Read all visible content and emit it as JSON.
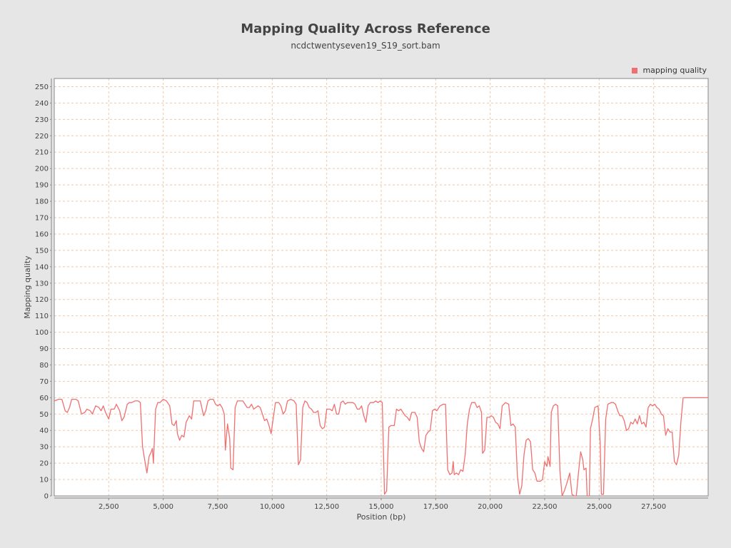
{
  "chart_data": {
    "type": "line",
    "title": "Mapping Quality Across Reference",
    "subtitle": "ncdctwentyseven19_S19_sort.bam",
    "xlabel": "Position (bp)",
    "ylabel": "Mapping quality",
    "xlim": [
      0,
      30000
    ],
    "ylim": [
      0,
      255
    ],
    "x_ticks": [
      2500,
      5000,
      7500,
      10000,
      12500,
      15000,
      17500,
      20000,
      22500,
      25000,
      27500
    ],
    "x_tick_labels": [
      "2,500",
      "5,000",
      "7,500",
      "10,000",
      "12,500",
      "15,000",
      "17,500",
      "20,000",
      "22,500",
      "25,000",
      "27,500"
    ],
    "y_ticks": [
      0,
      10,
      20,
      30,
      40,
      50,
      60,
      70,
      80,
      90,
      100,
      110,
      120,
      130,
      140,
      150,
      160,
      170,
      180,
      190,
      200,
      210,
      220,
      230,
      240,
      250
    ],
    "grid": true,
    "legend_position": "top-right",
    "colors": {
      "line": "#f07070",
      "grid": "#f0c8a8",
      "plot_background": "#ffffff",
      "page_background": "#e6e6e6"
    },
    "series": [
      {
        "name": "mapping quality",
        "points": [
          [
            0,
            58
          ],
          [
            200,
            59
          ],
          [
            350,
            59
          ],
          [
            500,
            52
          ],
          [
            600,
            51
          ],
          [
            700,
            54
          ],
          [
            800,
            59
          ],
          [
            1000,
            59
          ],
          [
            1100,
            58
          ],
          [
            1250,
            50
          ],
          [
            1400,
            51
          ],
          [
            1500,
            53
          ],
          [
            1650,
            52
          ],
          [
            1750,
            50
          ],
          [
            1900,
            55
          ],
          [
            2050,
            54
          ],
          [
            2150,
            52
          ],
          [
            2250,
            55
          ],
          [
            2350,
            51
          ],
          [
            2500,
            47
          ],
          [
            2600,
            53
          ],
          [
            2750,
            53
          ],
          [
            2850,
            56
          ],
          [
            3000,
            52
          ],
          [
            3100,
            46
          ],
          [
            3200,
            48
          ],
          [
            3350,
            56
          ],
          [
            3450,
            57
          ],
          [
            3550,
            57
          ],
          [
            3700,
            58
          ],
          [
            3850,
            58
          ],
          [
            3950,
            57
          ],
          [
            4050,
            30
          ],
          [
            4150,
            22
          ],
          [
            4250,
            14
          ],
          [
            4350,
            24
          ],
          [
            4450,
            27
          ],
          [
            4500,
            29
          ],
          [
            4550,
            20
          ],
          [
            4650,
            53
          ],
          [
            4750,
            57
          ],
          [
            4850,
            57
          ],
          [
            5000,
            59
          ],
          [
            5150,
            58
          ],
          [
            5300,
            55
          ],
          [
            5400,
            44
          ],
          [
            5500,
            43
          ],
          [
            5600,
            46
          ],
          [
            5650,
            38
          ],
          [
            5750,
            34
          ],
          [
            5850,
            37
          ],
          [
            5950,
            36
          ],
          [
            6050,
            45
          ],
          [
            6200,
            49
          ],
          [
            6300,
            47
          ],
          [
            6400,
            58
          ],
          [
            6550,
            58
          ],
          [
            6700,
            58
          ],
          [
            6850,
            49
          ],
          [
            6950,
            52
          ],
          [
            7050,
            58
          ],
          [
            7150,
            59
          ],
          [
            7300,
            59
          ],
          [
            7400,
            56
          ],
          [
            7500,
            55
          ],
          [
            7600,
            56
          ],
          [
            7700,
            54
          ],
          [
            7800,
            50
          ],
          [
            7850,
            28
          ],
          [
            7950,
            44
          ],
          [
            8050,
            35
          ],
          [
            8100,
            17
          ],
          [
            8200,
            16
          ],
          [
            8300,
            54
          ],
          [
            8400,
            58
          ],
          [
            8550,
            58
          ],
          [
            8650,
            58
          ],
          [
            8750,
            56
          ],
          [
            8850,
            54
          ],
          [
            8950,
            54
          ],
          [
            9050,
            56
          ],
          [
            9150,
            53
          ],
          [
            9250,
            54
          ],
          [
            9350,
            55
          ],
          [
            9450,
            54
          ],
          [
            9550,
            50
          ],
          [
            9650,
            46
          ],
          [
            9750,
            47
          ],
          [
            9850,
            43
          ],
          [
            9950,
            38
          ],
          [
            10050,
            48
          ],
          [
            10150,
            57
          ],
          [
            10300,
            57
          ],
          [
            10400,
            55
          ],
          [
            10500,
            50
          ],
          [
            10600,
            52
          ],
          [
            10700,
            58
          ],
          [
            10850,
            59
          ],
          [
            11000,
            58
          ],
          [
            11100,
            56
          ],
          [
            11200,
            19
          ],
          [
            11300,
            22
          ],
          [
            11400,
            54
          ],
          [
            11500,
            58
          ],
          [
            11600,
            57
          ],
          [
            11700,
            54
          ],
          [
            11800,
            53
          ],
          [
            11900,
            51
          ],
          [
            12000,
            51
          ],
          [
            12100,
            52
          ],
          [
            12200,
            43
          ],
          [
            12300,
            41
          ],
          [
            12400,
            42
          ],
          [
            12500,
            53
          ],
          [
            12650,
            53
          ],
          [
            12750,
            52
          ],
          [
            12850,
            56
          ],
          [
            12950,
            50
          ],
          [
            13050,
            50
          ],
          [
            13150,
            57
          ],
          [
            13250,
            58
          ],
          [
            13350,
            56
          ],
          [
            13450,
            57
          ],
          [
            13600,
            57
          ],
          [
            13700,
            57
          ],
          [
            13800,
            56
          ],
          [
            13900,
            53
          ],
          [
            14000,
            53
          ],
          [
            14100,
            55
          ],
          [
            14200,
            49
          ],
          [
            14300,
            45
          ],
          [
            14400,
            55
          ],
          [
            14500,
            57
          ],
          [
            14650,
            57
          ],
          [
            14750,
            58
          ],
          [
            14850,
            57
          ],
          [
            14950,
            58
          ],
          [
            15050,
            57
          ],
          [
            15150,
            1
          ],
          [
            15250,
            3
          ],
          [
            15350,
            42
          ],
          [
            15450,
            43
          ],
          [
            15600,
            43
          ],
          [
            15700,
            53
          ],
          [
            15800,
            52
          ],
          [
            15900,
            53
          ],
          [
            16000,
            51
          ],
          [
            16100,
            49
          ],
          [
            16200,
            48
          ],
          [
            16300,
            46
          ],
          [
            16400,
            51
          ],
          [
            16550,
            51
          ],
          [
            16650,
            48
          ],
          [
            16750,
            33
          ],
          [
            16850,
            29
          ],
          [
            16950,
            27
          ],
          [
            17050,
            37
          ],
          [
            17150,
            39
          ],
          [
            17250,
            40
          ],
          [
            17350,
            52
          ],
          [
            17450,
            53
          ],
          [
            17550,
            52
          ],
          [
            17700,
            55
          ],
          [
            17850,
            56
          ],
          [
            17950,
            56
          ],
          [
            18050,
            16
          ],
          [
            18150,
            13
          ],
          [
            18250,
            14
          ],
          [
            18300,
            21
          ],
          [
            18350,
            13
          ],
          [
            18450,
            14
          ],
          [
            18550,
            13
          ],
          [
            18650,
            16
          ],
          [
            18750,
            15
          ],
          [
            18850,
            25
          ],
          [
            18950,
            44
          ],
          [
            19050,
            53
          ],
          [
            19150,
            57
          ],
          [
            19300,
            57
          ],
          [
            19400,
            54
          ],
          [
            19500,
            55
          ],
          [
            19600,
            51
          ],
          [
            19650,
            26
          ],
          [
            19750,
            28
          ],
          [
            19850,
            48
          ],
          [
            19950,
            48
          ],
          [
            20050,
            49
          ],
          [
            20150,
            48
          ],
          [
            20250,
            45
          ],
          [
            20350,
            44
          ],
          [
            20450,
            41
          ],
          [
            20550,
            55
          ],
          [
            20700,
            57
          ],
          [
            20850,
            56
          ],
          [
            20950,
            43
          ],
          [
            21050,
            44
          ],
          [
            21150,
            42
          ],
          [
            21250,
            12
          ],
          [
            21350,
            1
          ],
          [
            21450,
            6
          ],
          [
            21550,
            25
          ],
          [
            21650,
            34
          ],
          [
            21750,
            35
          ],
          [
            21850,
            33
          ],
          [
            21950,
            16
          ],
          [
            22050,
            14
          ],
          [
            22150,
            9
          ],
          [
            22300,
            9
          ],
          [
            22400,
            10
          ],
          [
            22500,
            21
          ],
          [
            22600,
            18
          ],
          [
            22650,
            24
          ],
          [
            22750,
            18
          ],
          [
            22800,
            51
          ],
          [
            22900,
            55
          ],
          [
            23000,
            56
          ],
          [
            23100,
            55
          ],
          [
            23200,
            15
          ],
          [
            23300,
            0
          ],
          [
            23400,
            3
          ],
          [
            23500,
            7
          ],
          [
            23650,
            14
          ],
          [
            23750,
            1
          ],
          [
            23850,
            0
          ],
          [
            23950,
            0
          ],
          [
            24050,
            14
          ],
          [
            24150,
            27
          ],
          [
            24250,
            22
          ],
          [
            24300,
            16
          ],
          [
            24400,
            17
          ],
          [
            24450,
            0
          ],
          [
            24550,
            0
          ],
          [
            24600,
            41
          ],
          [
            24700,
            47
          ],
          [
            24800,
            54
          ],
          [
            24950,
            55
          ],
          [
            25050,
            31
          ],
          [
            25100,
            1
          ],
          [
            25200,
            1
          ],
          [
            25300,
            47
          ],
          [
            25400,
            56
          ],
          [
            25550,
            57
          ],
          [
            25650,
            57
          ],
          [
            25750,
            56
          ],
          [
            25850,
            52
          ],
          [
            25950,
            49
          ],
          [
            26050,
            49
          ],
          [
            26150,
            46
          ],
          [
            26250,
            40
          ],
          [
            26350,
            41
          ],
          [
            26450,
            45
          ],
          [
            26550,
            44
          ],
          [
            26650,
            47
          ],
          [
            26750,
            44
          ],
          [
            26850,
            49
          ],
          [
            26950,
            44
          ],
          [
            27050,
            45
          ],
          [
            27150,
            42
          ],
          [
            27250,
            54
          ],
          [
            27350,
            56
          ],
          [
            27450,
            55
          ],
          [
            27550,
            56
          ],
          [
            27650,
            54
          ],
          [
            27750,
            53
          ],
          [
            27850,
            50
          ],
          [
            27950,
            49
          ],
          [
            28050,
            37
          ],
          [
            28150,
            41
          ],
          [
            28250,
            39
          ],
          [
            28350,
            39
          ],
          [
            28450,
            21
          ],
          [
            28550,
            19
          ],
          [
            28650,
            25
          ],
          [
            28750,
            45
          ],
          [
            28850,
            60
          ],
          [
            29000,
            60
          ],
          [
            30000,
            60
          ]
        ]
      }
    ]
  }
}
